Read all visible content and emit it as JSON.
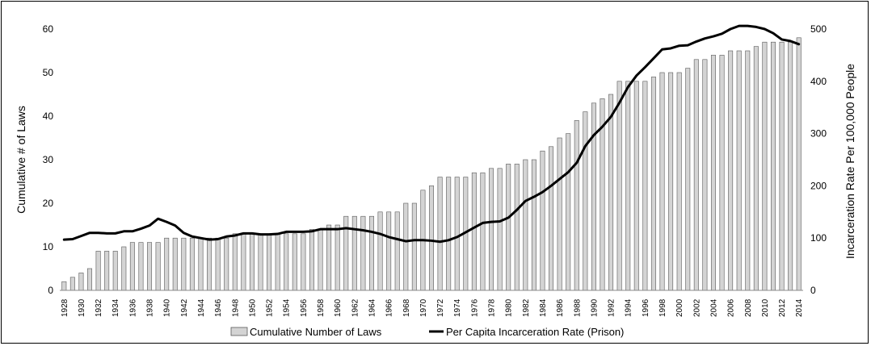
{
  "chart_data": {
    "type": "bar",
    "y_left_label": "Cumulative # of Laws",
    "y_right_label": "Incarceration Rate Per 100,000 People",
    "ylim_left": [
      0,
      60
    ],
    "ylim_right": [
      0,
      500
    ],
    "y_left_ticks": [
      "0",
      "10",
      "20",
      "30",
      "40",
      "50",
      "60"
    ],
    "y_right_ticks": [
      "0",
      "100",
      "200",
      "300",
      "400",
      "500"
    ],
    "grid": false,
    "legend_position": "bottom",
    "x": [
      1928,
      1929,
      1930,
      1931,
      1932,
      1933,
      1934,
      1935,
      1936,
      1937,
      1938,
      1939,
      1940,
      1941,
      1942,
      1943,
      1944,
      1945,
      1946,
      1947,
      1948,
      1949,
      1950,
      1951,
      1952,
      1953,
      1954,
      1955,
      1956,
      1957,
      1958,
      1959,
      1960,
      1961,
      1962,
      1963,
      1964,
      1965,
      1966,
      1967,
      1968,
      1969,
      1970,
      1971,
      1972,
      1973,
      1974,
      1975,
      1976,
      1977,
      1978,
      1979,
      1980,
      1981,
      1982,
      1983,
      1984,
      1985,
      1986,
      1987,
      1988,
      1989,
      1990,
      1991,
      1992,
      1993,
      1994,
      1995,
      1996,
      1997,
      1998,
      1999,
      2000,
      2001,
      2002,
      2003,
      2004,
      2005,
      2006,
      2007,
      2008,
      2009,
      2010,
      2011,
      2012,
      2013,
      2014
    ],
    "x_tick_labels": [
      "1928",
      "1930",
      "1932",
      "1934",
      "1936",
      "1938",
      "1940",
      "1942",
      "1944",
      "1946",
      "1948",
      "1950",
      "1952",
      "1954",
      "1956",
      "1958",
      "1960",
      "1962",
      "1964",
      "1966",
      "1968",
      "1970",
      "1972",
      "1974",
      "1976",
      "1978",
      "1980",
      "1982",
      "1984",
      "1986",
      "1988",
      "1990",
      "1992",
      "1994",
      "1996",
      "1998",
      "2000",
      "2002",
      "2004",
      "2006",
      "2008",
      "2010",
      "2012",
      "2014"
    ],
    "series": [
      {
        "name": "Cumulative Number of Laws",
        "type": "bar",
        "axis": "left",
        "color": "#d4d4d4",
        "values": [
          2,
          3,
          4,
          5,
          9,
          9,
          9,
          10,
          11,
          11,
          11,
          11,
          12,
          12,
          12,
          12,
          12,
          12,
          12,
          12,
          13,
          13,
          13,
          13,
          13,
          13,
          13,
          13,
          13,
          14,
          14,
          15,
          15,
          17,
          17,
          17,
          17,
          18,
          18,
          18,
          20,
          20,
          23,
          24,
          26,
          26,
          26,
          26,
          27,
          27,
          28,
          28,
          29,
          29,
          30,
          30,
          32,
          33,
          35,
          36,
          39,
          41,
          43,
          44,
          45,
          48,
          48,
          48,
          48,
          49,
          50,
          50,
          50,
          51,
          53,
          53,
          54,
          54,
          55,
          55,
          55,
          56,
          57,
          57,
          57,
          57,
          58
        ]
      },
      {
        "name": "Per Capita Incarceration Rate (Prison)",
        "type": "line",
        "axis": "right",
        "color": "#000000",
        "values": [
          97,
          98,
          104,
          110,
          110,
          109,
          109,
          113,
          113,
          118,
          124,
          137,
          131,
          124,
          110,
          103,
          100,
          97,
          98,
          103,
          105,
          109,
          109,
          107,
          107,
          108,
          112,
          112,
          112,
          113,
          117,
          117,
          117,
          119,
          117,
          115,
          112,
          108,
          102,
          98,
          94,
          96,
          96,
          95,
          93,
          96,
          102,
          111,
          120,
          129,
          131,
          132,
          139,
          154,
          171,
          179,
          188,
          200,
          213,
          226,
          244,
          276,
          297,
          313,
          332,
          359,
          389,
          411,
          427,
          444,
          461,
          463,
          468,
          469,
          476,
          482,
          486,
          491,
          500,
          506,
          506,
          504,
          500,
          492,
          480,
          477,
          471
        ]
      }
    ]
  }
}
